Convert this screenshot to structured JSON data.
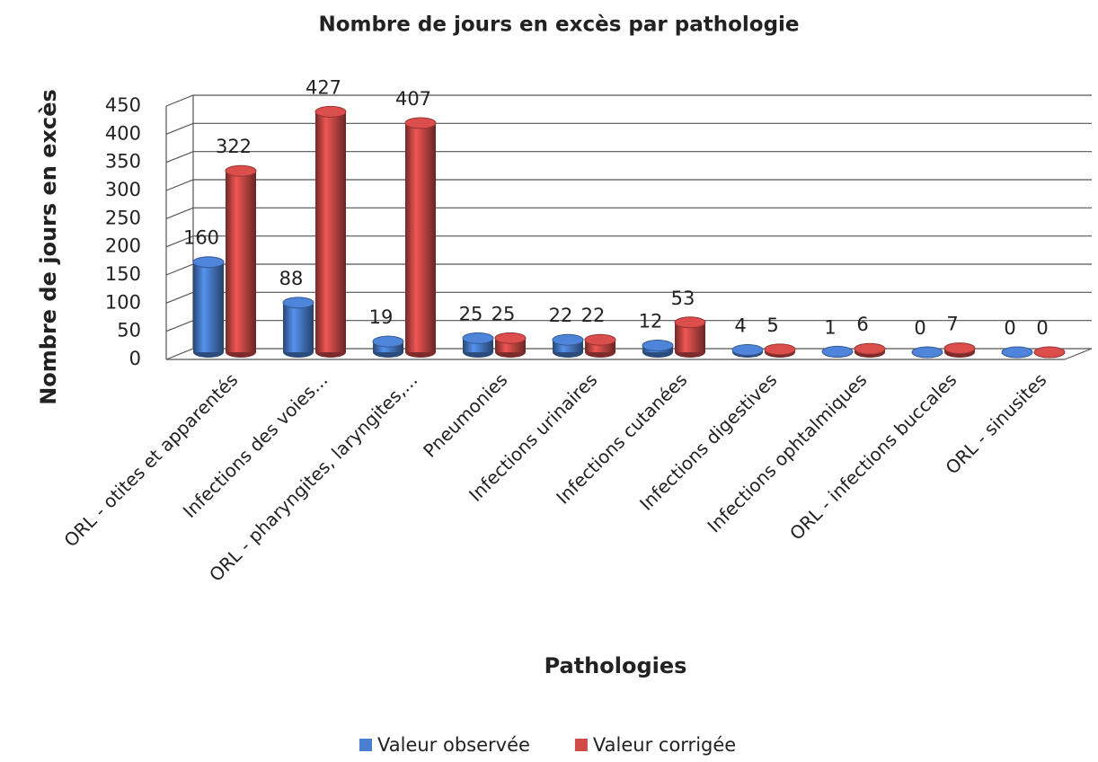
{
  "chart_data": {
    "type": "bar",
    "title": "Nombre de jours en excès par pathologie",
    "x_label": "Pathologies",
    "y_label": "Nombre de jours en excès",
    "categories": [
      "ORL - otites et apparentés",
      "Infections des voies...",
      "ORL - pharyngites, laryngites,...",
      "Pneumonies",
      "Infections urinaires",
      "Infections cutanées",
      "Infections digestives",
      "Infections ophtalmiques",
      "ORL - infections buccales",
      "ORL - sinusites"
    ],
    "series": [
      {
        "name": "Valeur observée",
        "color": "#4a7fd0",
        "values": [
          160,
          88,
          19,
          25,
          22,
          12,
          4,
          1,
          0,
          0
        ]
      },
      {
        "name": "Valeur corrigée",
        "color": "#d14a48",
        "values": [
          322,
          427,
          407,
          25,
          22,
          53,
          5,
          6,
          7,
          0
        ]
      }
    ],
    "ylim": [
      0,
      450
    ],
    "yticks": [
      0,
      50,
      100,
      150,
      200,
      250,
      300,
      350,
      400,
      450
    ],
    "grid": true,
    "legend": "bottom"
  }
}
